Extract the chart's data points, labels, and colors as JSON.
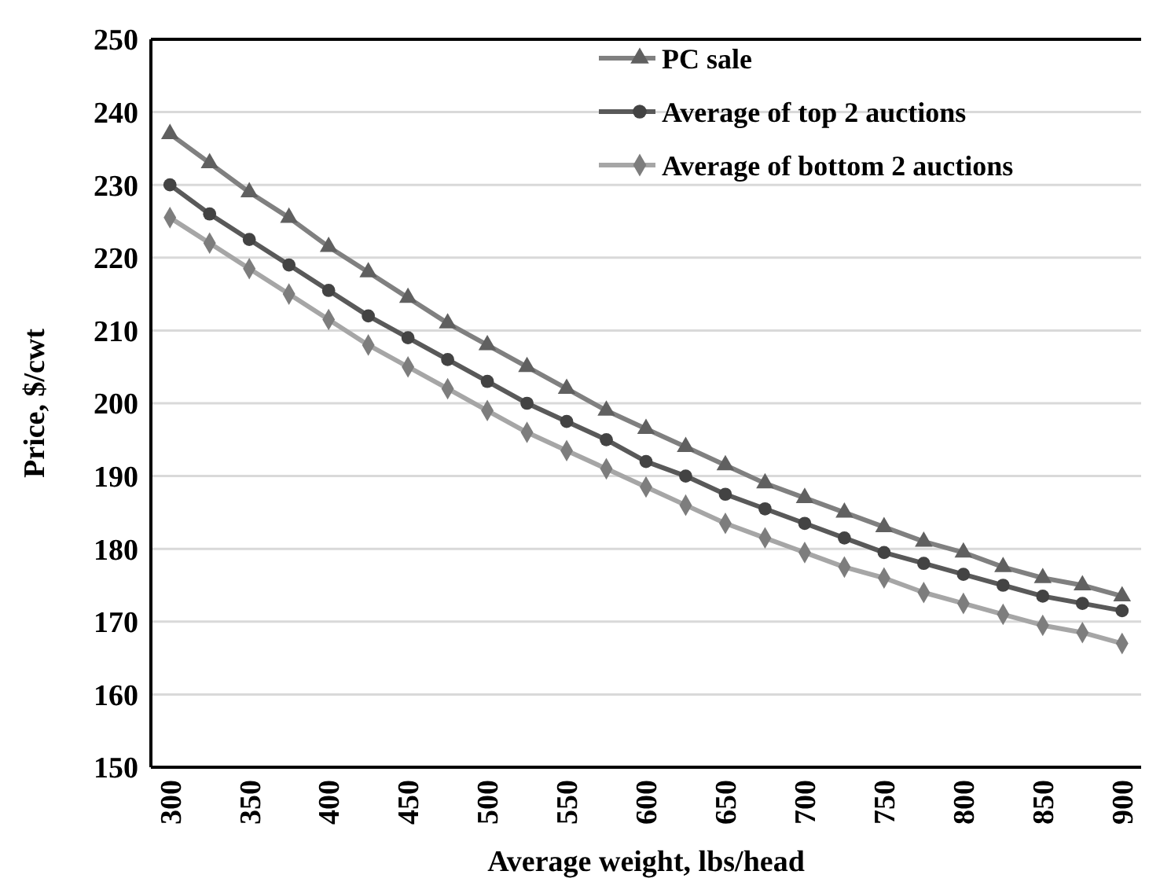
{
  "chart_data": {
    "type": "line",
    "xlabel": "Average weight, lbs/head",
    "ylabel": "Price, $/cwt",
    "x": [
      300,
      325,
      350,
      375,
      400,
      425,
      450,
      475,
      500,
      525,
      550,
      575,
      600,
      625,
      650,
      675,
      700,
      725,
      750,
      775,
      800,
      825,
      850,
      875,
      900
    ],
    "xlim": [
      288,
      912
    ],
    "xticks": [
      300,
      350,
      400,
      450,
      500,
      550,
      600,
      650,
      700,
      750,
      800,
      850,
      900
    ],
    "ylim": [
      150,
      250
    ],
    "yticks": [
      150,
      160,
      170,
      180,
      190,
      200,
      210,
      220,
      230,
      240,
      250
    ],
    "grid": "y",
    "legend": "top right",
    "line_style": "solid",
    "series": [
      {
        "name": "PC sale",
        "color": "#808080",
        "marker": "triangle",
        "values": [
          237,
          233,
          229,
          225.5,
          221.5,
          218,
          214.5,
          211,
          208,
          205,
          202,
          199,
          196.5,
          194,
          191.5,
          189,
          187,
          185,
          183,
          181,
          179.5,
          177.5,
          176,
          175,
          173.5
        ]
      },
      {
        "name": "Average of top 2 auctions",
        "color": "#595959",
        "marker": "circle",
        "values": [
          230,
          226,
          222.5,
          219,
          215.5,
          212,
          209,
          206,
          203,
          200,
          197.5,
          195,
          192,
          190,
          187.5,
          185.5,
          183.5,
          181.5,
          179.5,
          178,
          176.5,
          175,
          173.5,
          172.5,
          171.5
        ]
      },
      {
        "name": "Average of bottom 2 auctions",
        "color": "#a6a6a6",
        "marker": "diamond",
        "values": [
          225.5,
          222,
          218.5,
          215,
          211.5,
          208,
          205,
          202,
          199,
          196,
          193.5,
          191,
          188.5,
          186,
          183.5,
          181.5,
          179.5,
          177.5,
          176,
          174,
          172.5,
          171,
          169.5,
          168.5,
          167
        ]
      }
    ]
  }
}
